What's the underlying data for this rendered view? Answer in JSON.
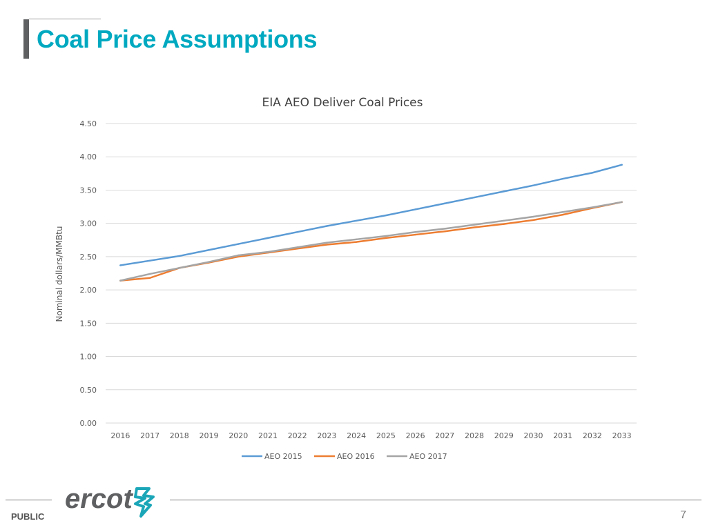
{
  "slide": {
    "title": "Coal Price Assumptions",
    "footer_label": "PUBLIC",
    "page_number": "7",
    "logo_text": "ercot",
    "accent_color": "#00a9c0"
  },
  "chart_data": {
    "type": "line",
    "title": "EIA AEO Deliver Coal Prices",
    "xlabel": "",
    "ylabel": "Nominal dollars/MMBtu",
    "ylim": [
      0,
      4.5
    ],
    "yticks": [
      "0.00",
      "0.50",
      "1.00",
      "1.50",
      "2.00",
      "2.50",
      "3.00",
      "3.50",
      "4.00",
      "4.50"
    ],
    "grid": true,
    "legend_position": "bottom",
    "categories": [
      "2016",
      "2017",
      "2018",
      "2019",
      "2020",
      "2021",
      "2022",
      "2023",
      "2024",
      "2025",
      "2026",
      "2027",
      "2028",
      "2029",
      "2030",
      "2031",
      "2032",
      "2033"
    ],
    "series": [
      {
        "name": "AEO 2015",
        "color": "#5b9bd5",
        "values": [
          2.37,
          2.44,
          2.51,
          2.6,
          2.69,
          2.78,
          2.87,
          2.96,
          3.04,
          3.12,
          3.21,
          3.3,
          3.39,
          3.48,
          3.57,
          3.67,
          3.76,
          3.88
        ]
      },
      {
        "name": "AEO 2016",
        "color": "#ed7d31",
        "values": [
          2.14,
          2.18,
          2.33,
          2.41,
          2.5,
          2.56,
          2.62,
          2.68,
          2.72,
          2.78,
          2.83,
          2.88,
          2.94,
          2.99,
          3.05,
          3.13,
          3.23,
          3.32
        ]
      },
      {
        "name": "AEO 2017",
        "color": "#a5a5a5",
        "values": [
          2.14,
          2.24,
          2.33,
          2.42,
          2.52,
          2.57,
          2.64,
          2.71,
          2.76,
          2.81,
          2.87,
          2.92,
          2.98,
          3.04,
          3.1,
          3.17,
          3.24,
          3.32
        ]
      }
    ]
  }
}
